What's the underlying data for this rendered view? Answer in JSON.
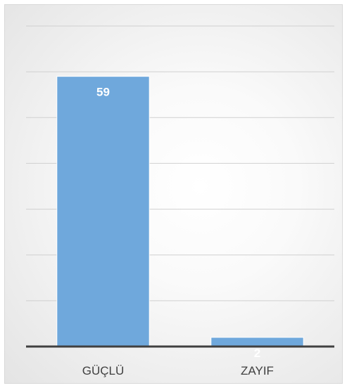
{
  "chart_data": {
    "type": "bar",
    "title": "",
    "xlabel": "",
    "ylabel": "",
    "categories": [
      "GÜÇLÜ",
      "ZAYIF"
    ],
    "values": [
      59,
      2
    ],
    "data_labels": [
      "59",
      "2"
    ],
    "ylim": [
      0,
      70
    ],
    "grid": true,
    "y_tick_labels_shown": false,
    "legend": "none",
    "bar_color": "#6fa8dc",
    "data_label_color": "#ffffff",
    "axis_color": "#404040",
    "gridline_color": "#d0d0d0"
  }
}
